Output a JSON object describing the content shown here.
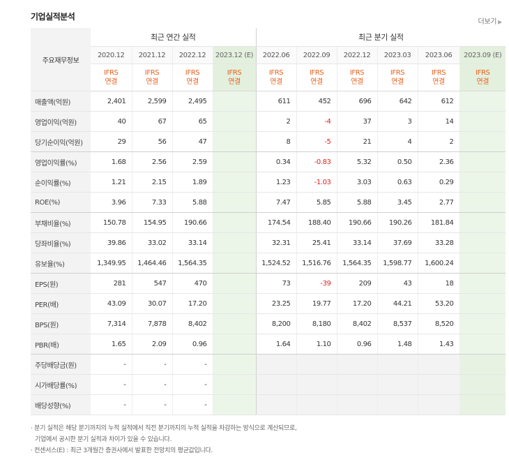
{
  "title": "기업실적분석",
  "more_label": "더보기",
  "header": {
    "label": "주요재무정보",
    "annual_group": "최근 연간 실적",
    "quarter_group": "최근 분기 실적",
    "annual_periods": [
      "2020.12",
      "2021.12",
      "2022.12",
      "2023.12 (E)"
    ],
    "quarter_periods": [
      "2022.06",
      "2022.09",
      "2022.12",
      "2023.03",
      "2023.06",
      "2023.09 (E)"
    ],
    "ifrs": "IFRS",
    "consolidated": "연결"
  },
  "rows": [
    {
      "label": "매출액(억원)",
      "annual": [
        "2,401",
        "2,599",
        "2,495",
        ""
      ],
      "quarter": [
        "611",
        "452",
        "696",
        "642",
        "612",
        ""
      ]
    },
    {
      "label": "영업이익(억원)",
      "annual": [
        "40",
        "67",
        "65",
        ""
      ],
      "quarter": [
        "2",
        "-4",
        "37",
        "3",
        "14",
        ""
      ]
    },
    {
      "label": "당기순이익(억원)",
      "annual": [
        "29",
        "56",
        "47",
        ""
      ],
      "quarter": [
        "8",
        "-5",
        "21",
        "4",
        "2",
        ""
      ]
    },
    {
      "label": "영업이익률(%)",
      "annual": [
        "1.68",
        "2.56",
        "2.59",
        ""
      ],
      "quarter": [
        "0.34",
        "-0.83",
        "5.32",
        "0.50",
        "2.36",
        ""
      ]
    },
    {
      "label": "순이익률(%)",
      "annual": [
        "1.21",
        "2.15",
        "1.89",
        ""
      ],
      "quarter": [
        "1.23",
        "-1.03",
        "3.03",
        "0.63",
        "0.29",
        ""
      ]
    },
    {
      "label": "ROE(%)",
      "annual": [
        "3.96",
        "7.33",
        "5.88",
        ""
      ],
      "quarter": [
        "7.47",
        "5.85",
        "5.88",
        "3.45",
        "2.77",
        ""
      ]
    },
    {
      "label": "부채비율(%)",
      "annual": [
        "150.78",
        "154.95",
        "190.66",
        ""
      ],
      "quarter": [
        "174.54",
        "188.40",
        "190.66",
        "190.26",
        "181.84",
        ""
      ]
    },
    {
      "label": "당좌비율(%)",
      "annual": [
        "39.86",
        "33.02",
        "33.14",
        ""
      ],
      "quarter": [
        "32.31",
        "25.41",
        "33.14",
        "37.69",
        "33.28",
        ""
      ]
    },
    {
      "label": "유보율(%)",
      "annual": [
        "1,349.95",
        "1,464.46",
        "1,564.35",
        ""
      ],
      "quarter": [
        "1,524.52",
        "1,516.76",
        "1,564.35",
        "1,598.77",
        "1,600.24",
        ""
      ]
    },
    {
      "label": "EPS(원)",
      "annual": [
        "281",
        "547",
        "470",
        ""
      ],
      "quarter": [
        "73",
        "-39",
        "209",
        "43",
        "18",
        ""
      ]
    },
    {
      "label": "PER(배)",
      "annual": [
        "43.09",
        "30.07",
        "17.20",
        ""
      ],
      "quarter": [
        "23.25",
        "19.77",
        "17.20",
        "44.21",
        "53.20",
        ""
      ]
    },
    {
      "label": "BPS(원)",
      "annual": [
        "7,314",
        "7,878",
        "8,402",
        ""
      ],
      "quarter": [
        "8,200",
        "8,180",
        "8,402",
        "8,537",
        "8,520",
        ""
      ]
    },
    {
      "label": "PBR(배)",
      "annual": [
        "1.65",
        "2.09",
        "0.96",
        ""
      ],
      "quarter": [
        "1.64",
        "1.10",
        "0.96",
        "1.48",
        "1.43",
        ""
      ]
    },
    {
      "label": "주당배당금(원)",
      "annual": [
        "-",
        "-",
        "-",
        ""
      ],
      "quarter": [
        "",
        "",
        "",
        "",
        "",
        ""
      ]
    },
    {
      "label": "시가배당률(%)",
      "annual": [
        "-",
        "-",
        "-",
        ""
      ],
      "quarter": [
        "",
        "",
        "",
        "",
        "",
        ""
      ]
    },
    {
      "label": "배당성향(%)",
      "annual": [
        "-",
        "-",
        "-",
        ""
      ],
      "quarter": [
        "",
        "",
        "",
        "",
        "",
        ""
      ]
    }
  ],
  "notes": [
    "분기 실적은 해당 분기까지의 누적 실적에서 직전 분기까지의 누적 실적을 차감하는 방식으로 계산되므로,",
    "기업에서 공시한 분기 실적과 차이가 있을 수 있습니다.",
    "컨센서스(E) : 최근 3개월간 증권사에서 발표한 전망치의 평균값입니다."
  ],
  "colors": {
    "negative": "#e0201b",
    "ifrs": "#e8601c",
    "estimate_bg": "#ecf6e8"
  }
}
